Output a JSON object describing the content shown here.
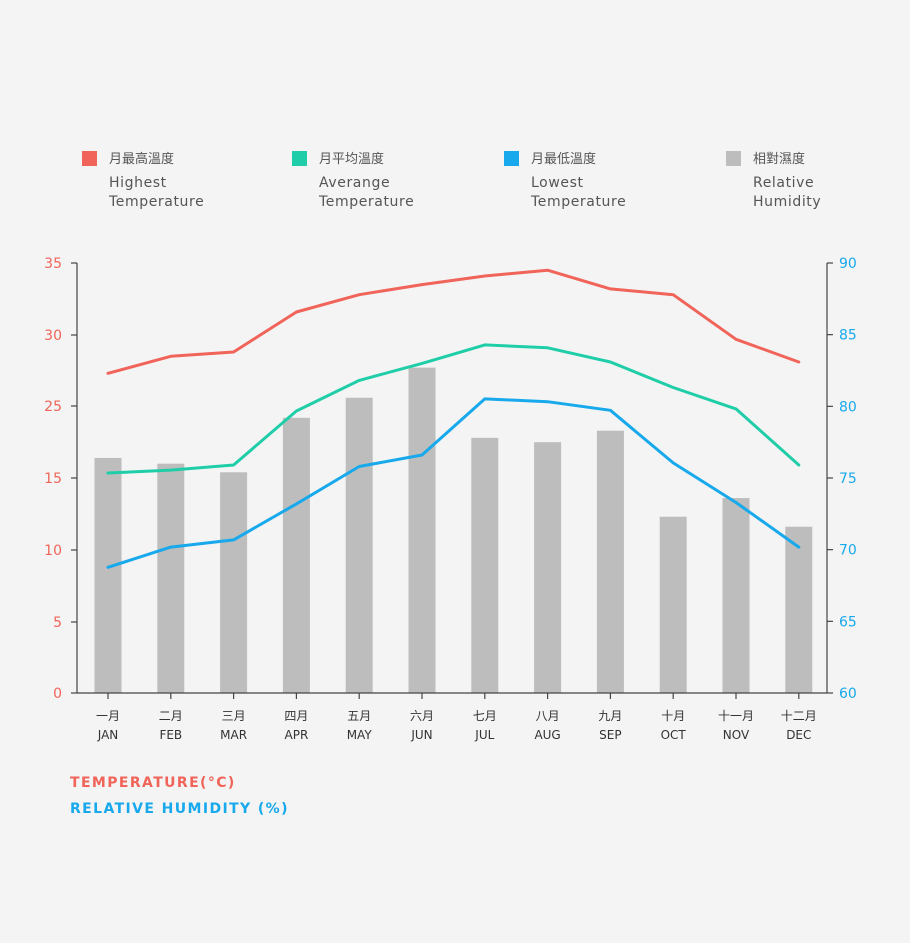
{
  "legend": [
    {
      "zh": "月最高溫度",
      "en1": "Highest",
      "en2": "Temperature",
      "color": "#f0645a"
    },
    {
      "zh": "月平均溫度",
      "en1": "Averange",
      "en2": "Temperature",
      "color": "#1fcea8"
    },
    {
      "zh": "月最低溫度",
      "en1": "Lowest",
      "en2": "Temperature",
      "color": "#17a9ec"
    },
    {
      "zh": "相對濕度",
      "en1": "Relative",
      "en2": "Humidity",
      "color": "#bdbdbd"
    }
  ],
  "axis_titles": {
    "temperature": "TEMPERATURE(°C)",
    "humidity": "RELATIVE HUMIDITY (%)"
  },
  "chart_data": {
    "type": "bar",
    "categories_zh": [
      "一月",
      "二月",
      "三月",
      "四月",
      "五月",
      "六月",
      "七月",
      "八月",
      "九月",
      "十月",
      "十一月",
      "十二月"
    ],
    "categories": [
      "JAN",
      "FEB",
      "MAR",
      "APR",
      "MAY",
      "JUN",
      "JUL",
      "AUG",
      "SEP",
      "OCT",
      "NOV",
      "DEC"
    ],
    "y_left": {
      "label": "TEMPERATURE(°C)",
      "ticks": [
        0,
        5,
        10,
        15,
        25,
        30,
        35
      ],
      "color": "#f0645a"
    },
    "y_right": {
      "label": "RELATIVE HUMIDITY (%)",
      "range": [
        60,
        90
      ],
      "ticks": [
        60,
        65,
        70,
        75,
        80,
        85,
        90
      ],
      "color": "#17a9ec"
    },
    "bars": {
      "name": "相對濕度",
      "axis": "right",
      "color": "#bdbdbd",
      "values": [
        76.4,
        76.0,
        75.4,
        79.2,
        80.6,
        82.7,
        77.8,
        77.5,
        78.3,
        72.3,
        73.6,
        71.6
      ]
    },
    "series": [
      {
        "name": "月最高溫度",
        "color": "#f0645a",
        "values": [
          27.3,
          28.5,
          28.8,
          31.6,
          32.8,
          33.5,
          34.1,
          34.5,
          33.2,
          32.8,
          29.7,
          28.1
        ]
      },
      {
        "name": "月平均溫度",
        "color": "#1fcea8",
        "values": [
          15.7,
          16.1,
          16.8,
          24.3,
          26.8,
          28.0,
          29.3,
          29.1,
          28.1,
          26.3,
          24.6,
          16.8
        ]
      },
      {
        "name": "月最低溫度",
        "color": "#17a9ec",
        "values": [
          8.8,
          10.2,
          10.7,
          13.2,
          16.6,
          18.2,
          25.5,
          25.3,
          24.4,
          17.1,
          13.3,
          10.2
        ]
      }
    ]
  }
}
